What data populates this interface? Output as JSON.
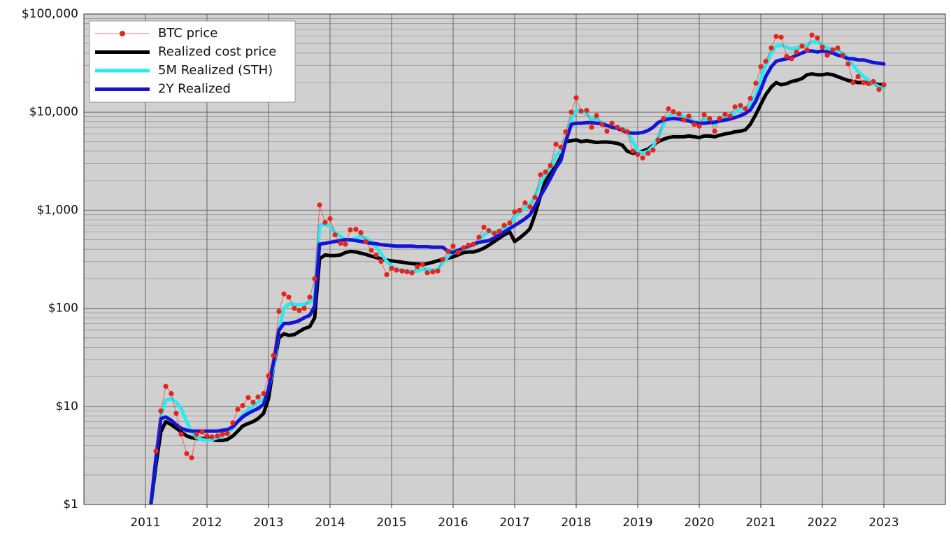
{
  "chart_data": {
    "type": "line",
    "yscale": "log",
    "grid": true,
    "minor_grid": true,
    "legend": "upper left",
    "xlim": [
      2010,
      2024
    ],
    "ylim": [
      1,
      100000
    ],
    "xticks": [
      2011,
      2012,
      2013,
      2014,
      2015,
      2016,
      2017,
      2018,
      2019,
      2020,
      2021,
      2022,
      2023
    ],
    "yticks": [
      {
        "value": 1,
        "label": "$1"
      },
      {
        "value": 10,
        "label": "$10"
      },
      {
        "value": 100,
        "label": "$100"
      },
      {
        "value": 1000,
        "label": "$1,000"
      },
      {
        "value": 10000,
        "label": "$10,000"
      },
      {
        "value": 100000,
        "label": "$100,000"
      }
    ],
    "x": [
      2011,
      2011.08,
      2011.17,
      2011.25,
      2011.33,
      2011.42,
      2011.5,
      2011.58,
      2011.67,
      2011.75,
      2011.83,
      2011.92,
      2012,
      2012.08,
      2012.17,
      2012.25,
      2012.33,
      2012.42,
      2012.5,
      2012.58,
      2012.67,
      2012.75,
      2012.83,
      2012.92,
      2013,
      2013.08,
      2013.17,
      2013.25,
      2013.33,
      2013.42,
      2013.5,
      2013.58,
      2013.67,
      2013.75,
      2013.83,
      2013.92,
      2014,
      2014.08,
      2014.17,
      2014.25,
      2014.33,
      2014.42,
      2014.5,
      2014.58,
      2014.67,
      2014.75,
      2014.83,
      2014.92,
      2015,
      2015.08,
      2015.17,
      2015.25,
      2015.33,
      2015.42,
      2015.5,
      2015.58,
      2015.67,
      2015.75,
      2015.83,
      2015.92,
      2016,
      2016.08,
      2016.17,
      2016.25,
      2016.33,
      2016.42,
      2016.5,
      2016.58,
      2016.67,
      2016.75,
      2016.83,
      2016.92,
      2017,
      2017.08,
      2017.17,
      2017.25,
      2017.33,
      2017.42,
      2017.5,
      2017.58,
      2017.67,
      2017.75,
      2017.83,
      2017.92,
      2018,
      2018.08,
      2018.17,
      2018.25,
      2018.33,
      2018.42,
      2018.5,
      2018.58,
      2018.67,
      2018.75,
      2018.83,
      2018.92,
      2019,
      2019.08,
      2019.17,
      2019.25,
      2019.33,
      2019.42,
      2019.5,
      2019.58,
      2019.67,
      2019.75,
      2019.83,
      2019.92,
      2020,
      2020.08,
      2020.17,
      2020.25,
      2020.33,
      2020.42,
      2020.5,
      2020.58,
      2020.67,
      2020.75,
      2020.83,
      2020.92,
      2021,
      2021.08,
      2021.17,
      2021.25,
      2021.33,
      2021.42,
      2021.5,
      2021.58,
      2021.67,
      2021.75,
      2021.83,
      2021.92,
      2022,
      2022.08,
      2022.17,
      2022.25,
      2022.33,
      2022.42,
      2022.5,
      2022.58,
      2022.67,
      2022.75,
      2022.83,
      2022.92,
      2023
    ],
    "series": [
      {
        "name": "BTC price",
        "color": "#e8231c",
        "marker": "o",
        "values": [
          null,
          null,
          3.5,
          9,
          16,
          13.5,
          8.5,
          5.2,
          3.3,
          3.0,
          5.2,
          5.5,
          5.0,
          4.9,
          5.0,
          5.2,
          5.3,
          6.8,
          9.3,
          10.2,
          12.3,
          11,
          12.5,
          13.5,
          20.5,
          33,
          93,
          140,
          130,
          100,
          95,
          100,
          130,
          200,
          1130,
          750,
          820,
          560,
          460,
          450,
          630,
          640,
          590,
          480,
          390,
          350,
          300,
          220,
          255,
          245,
          240,
          236,
          230,
          265,
          280,
          230,
          235,
          240,
          315,
          380,
          430,
          370,
          415,
          440,
          450,
          530,
          670,
          620,
          580,
          610,
          700,
          740,
          960,
          1000,
          1190,
          1080,
          1350,
          2300,
          2450,
          2850,
          4700,
          4400,
          6300,
          10000,
          14000,
          10200,
          10400,
          7000,
          9200,
          7500,
          6400,
          7700,
          7000,
          6600,
          6300,
          4000,
          3700,
          3400,
          3800,
          4100,
          5200,
          8600,
          10800,
          10100,
          9600,
          8300,
          9100,
          7500,
          7200,
          9400,
          8600,
          6400,
          8600,
          9500,
          9100,
          11300,
          11700,
          10800,
          13800,
          19700,
          29000,
          33000,
          45000,
          59000,
          58000,
          37000,
          35000,
          41000,
          47000,
          43000,
          61000,
          57000,
          46000,
          38000,
          43000,
          45000,
          38000,
          31000,
          20000,
          23000,
          20000,
          19500,
          20500,
          17000,
          19000
        ]
      },
      {
        "name": "Realized cost price",
        "color": "#000000",
        "values": [
          null,
          0.9,
          2.5,
          5.5,
          7.0,
          6.5,
          6.0,
          5.5,
          5.0,
          4.8,
          4.7,
          4.7,
          4.7,
          4.6,
          4.5,
          4.5,
          4.6,
          5.0,
          5.6,
          6.3,
          6.7,
          7.0,
          7.5,
          8.5,
          12,
          25,
          50,
          55,
          53,
          54,
          58,
          62,
          65,
          80,
          320,
          350,
          345,
          345,
          350,
          370,
          380,
          375,
          365,
          355,
          340,
          330,
          320,
          310,
          305,
          300,
          295,
          290,
          285,
          283,
          280,
          285,
          295,
          305,
          315,
          325,
          335,
          350,
          370,
          375,
          375,
          390,
          410,
          440,
          480,
          520,
          560,
          600,
          480,
          520,
          580,
          650,
          900,
          1400,
          2000,
          2400,
          2800,
          3500,
          5000,
          5100,
          5200,
          5000,
          5100,
          5000,
          4900,
          4950,
          4950,
          4900,
          4800,
          4600,
          4000,
          3800,
          3900,
          4000,
          4200,
          4600,
          5000,
          5300,
          5500,
          5600,
          5600,
          5600,
          5700,
          5600,
          5500,
          5700,
          5700,
          5600,
          5800,
          6000,
          6100,
          6300,
          6400,
          6600,
          7500,
          9500,
          12000,
          15000,
          18000,
          20000,
          19000,
          19500,
          20500,
          21000,
          22000,
          24000,
          24500,
          24000,
          24000,
          24500,
          24000,
          23000,
          22000,
          21000,
          20500,
          20000,
          20000,
          20000,
          19500,
          19000,
          19000
        ]
      },
      {
        "name": "5M Realized (STH)",
        "color": "#2ee8f0",
        "values": [
          null,
          0.9,
          3,
          8,
          11.5,
          12,
          11,
          9.5,
          7,
          5.5,
          4.8,
          4.6,
          4.5,
          4.6,
          4.8,
          5,
          5.3,
          6,
          7,
          8.2,
          9.3,
          10,
          11,
          12,
          15,
          25,
          60,
          100,
          110,
          110,
          108,
          110,
          115,
          130,
          700,
          720,
          680,
          600,
          540,
          500,
          490,
          520,
          540,
          520,
          480,
          420,
          360,
          300,
          270,
          250,
          245,
          240,
          237,
          240,
          250,
          250,
          245,
          250,
          290,
          340,
          380,
          390,
          400,
          420,
          440,
          490,
          560,
          600,
          600,
          610,
          660,
          720,
          850,
          950,
          1050,
          1150,
          1400,
          1900,
          2300,
          2700,
          3600,
          4000,
          5000,
          8500,
          10500,
          10500,
          9500,
          8500,
          8500,
          7800,
          7300,
          7300,
          7000,
          6800,
          6500,
          5000,
          4000,
          3800,
          4000,
          4500,
          5500,
          7500,
          9000,
          9700,
          9500,
          9000,
          8800,
          8000,
          7800,
          8500,
          8300,
          7500,
          8200,
          9000,
          9200,
          10000,
          10800,
          11000,
          12000,
          15000,
          22000,
          30000,
          40000,
          47000,
          48000,
          46000,
          44000,
          45000,
          47000,
          48000,
          52000,
          52000,
          48000,
          45000,
          44000,
          42000,
          40000,
          36000,
          30000,
          26000,
          23000,
          21000,
          19500,
          18000,
          17500
        ]
      },
      {
        "name": "2Y Realized",
        "color": "#1414d6",
        "values": [
          null,
          0.9,
          3,
          7.5,
          7.8,
          7.2,
          6.5,
          6,
          5.7,
          5.6,
          5.6,
          5.6,
          5.6,
          5.6,
          5.6,
          5.7,
          5.8,
          6.2,
          7,
          7.8,
          8.5,
          9,
          9.5,
          10.5,
          15,
          28,
          60,
          70,
          70,
          72,
          75,
          80,
          85,
          105,
          450,
          460,
          470,
          480,
          490,
          500,
          500,
          490,
          480,
          470,
          460,
          455,
          445,
          440,
          435,
          430,
          430,
          430,
          430,
          425,
          425,
          425,
          420,
          420,
          420,
          380,
          370,
          390,
          410,
          430,
          450,
          470,
          480,
          490,
          520,
          560,
          600,
          650,
          700,
          750,
          820,
          900,
          1100,
          1400,
          1700,
          2100,
          2700,
          3200,
          5000,
          7500,
          7700,
          7700,
          7800,
          7800,
          7700,
          7600,
          7300,
          7000,
          6800,
          6500,
          6200,
          6100,
          6100,
          6200,
          6500,
          7000,
          7800,
          8300,
          8500,
          8600,
          8500,
          8300,
          8100,
          7800,
          7700,
          7700,
          7800,
          7900,
          8100,
          8300,
          8500,
          8800,
          9200,
          9700,
          10500,
          13000,
          17000,
          23000,
          29000,
          33000,
          34000,
          35000,
          36000,
          38000,
          40000,
          42000,
          42000,
          41000,
          42000,
          41000,
          40000,
          38000,
          37000,
          35000,
          35000,
          34000,
          34000,
          33000,
          32000,
          31500,
          31000
        ]
      }
    ]
  }
}
